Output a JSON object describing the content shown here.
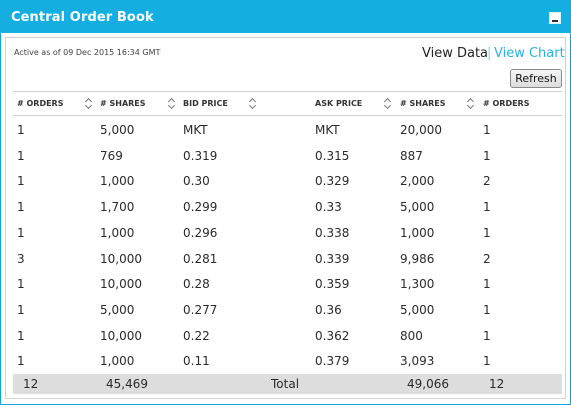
{
  "panel": {
    "title": "Central Order Book",
    "collapse_icon": "minus-icon"
  },
  "status": {
    "active_text": "Active as of 09 Dec 2015 16:34 GMT"
  },
  "view_toggle": {
    "view_data": "View Data",
    "separator": "|",
    "view_chart": "View Chart"
  },
  "toolbar": {
    "refresh_label": "Refresh"
  },
  "table": {
    "headers": [
      "# ORDERS",
      "# SHARES",
      "BID PRICE",
      "ASK PRICE",
      "# SHARES",
      "# ORDERS"
    ],
    "rows": [
      [
        "1",
        "5,000",
        "MKT",
        "MKT",
        "20,000",
        "1"
      ],
      [
        "1",
        "769",
        "0.319",
        "0.315",
        "887",
        "1"
      ],
      [
        "1",
        "1,000",
        "0.30",
        "0.329",
        "2,000",
        "2"
      ],
      [
        "1",
        "1,700",
        "0.299",
        "0.33",
        "5,000",
        "1"
      ],
      [
        "1",
        "1,000",
        "0.296",
        "0.338",
        "1,000",
        "1"
      ],
      [
        "3",
        "10,000",
        "0.281",
        "0.339",
        "9,986",
        "2"
      ],
      [
        "1",
        "10,000",
        "0.28",
        "0.359",
        "1,300",
        "1"
      ],
      [
        "1",
        "5,000",
        "0.277",
        "0.36",
        "5,000",
        "1"
      ],
      [
        "1",
        "10,000",
        "0.22",
        "0.362",
        "800",
        "1"
      ],
      [
        "1",
        "1,000",
        "0.11",
        "0.379",
        "3,093",
        "1"
      ]
    ],
    "totals": {
      "bid_orders": "12",
      "bid_shares": "45,469",
      "label": "Total",
      "ask_shares": "49,066",
      "ask_orders": "12"
    }
  },
  "colors": {
    "header_bg": "#14aee0",
    "link": "#26b1e4",
    "totals_bg": "#dddddd"
  }
}
